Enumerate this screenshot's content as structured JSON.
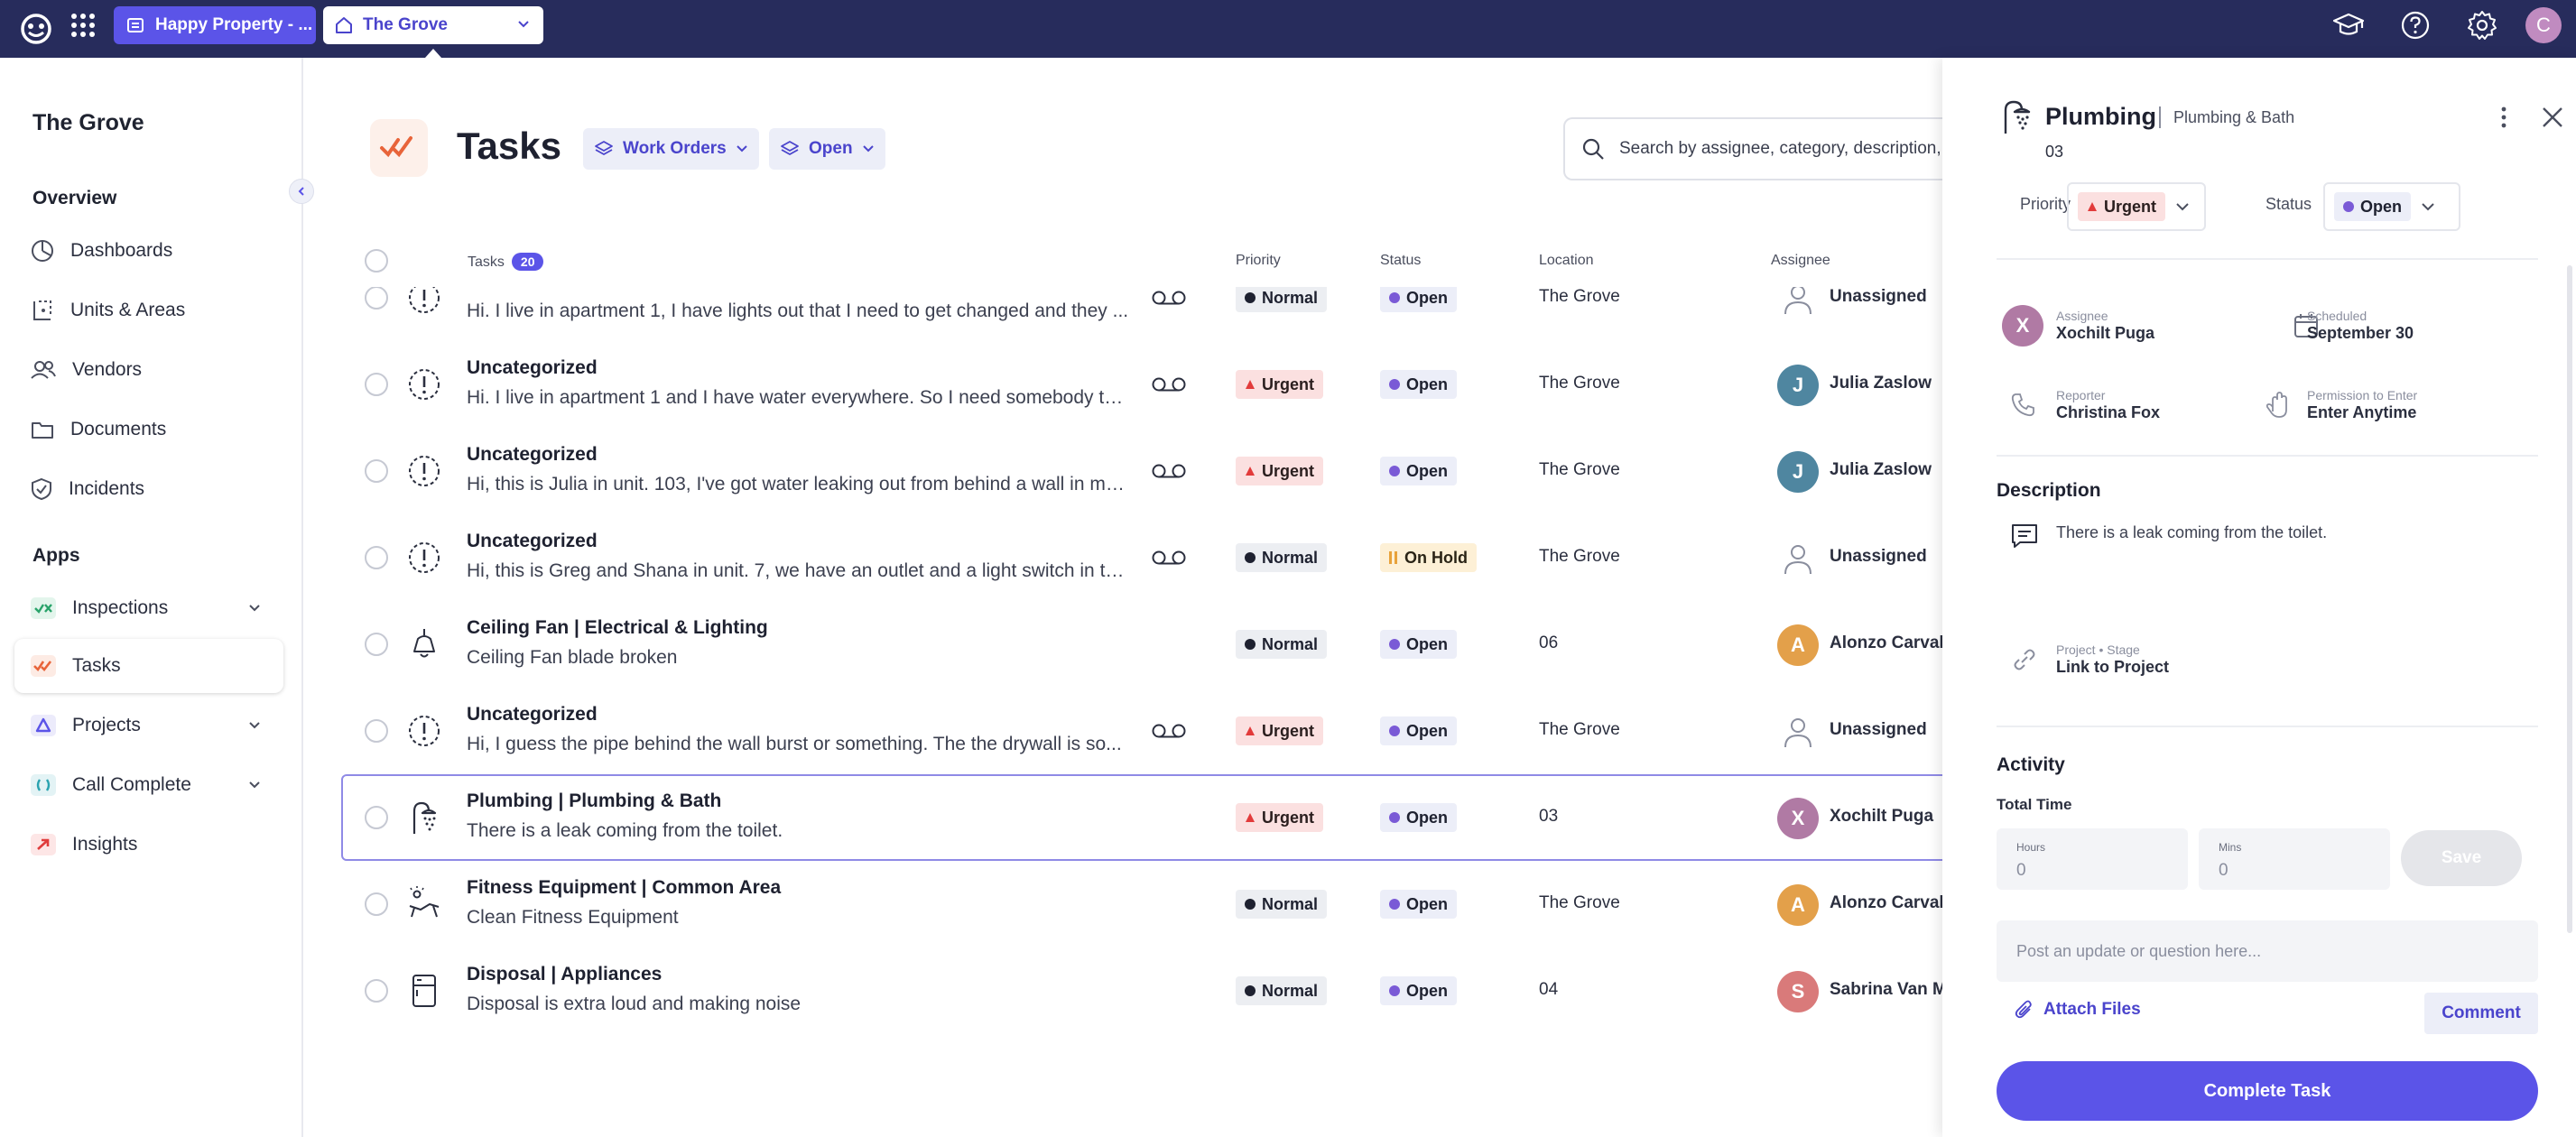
{
  "topbar": {
    "property_label": "Happy Property - ...",
    "location_label": "The Grove",
    "avatar_initial": "C"
  },
  "sidebar": {
    "title": "The Grove",
    "overview_heading": "Overview",
    "overview_items": [
      {
        "label": "Dashboards",
        "icon": "dashboard-icon"
      },
      {
        "label": "Units & Areas",
        "icon": "units-icon"
      },
      {
        "label": "Vendors",
        "icon": "vendors-icon"
      },
      {
        "label": "Documents",
        "icon": "folder-icon"
      },
      {
        "label": "Incidents",
        "icon": "shield-icon"
      }
    ],
    "apps_heading": "Apps",
    "app_items": [
      {
        "label": "Inspections",
        "icon": "inspections-icon",
        "expandable": true
      },
      {
        "label": "Tasks",
        "icon": "tasks-icon",
        "active": true
      },
      {
        "label": "Projects",
        "icon": "projects-icon",
        "expandable": true
      },
      {
        "label": "Call Complete",
        "icon": "call-complete-icon",
        "expandable": true
      },
      {
        "label": "Insights",
        "icon": "insights-icon"
      }
    ]
  },
  "main": {
    "title": "Tasks",
    "filters": [
      {
        "label": "Work Orders"
      },
      {
        "label": "Open"
      }
    ],
    "search_placeholder": "Search by assignee, category, description,",
    "columns": {
      "tasks": "Tasks",
      "tasks_count": "20",
      "priority": "Priority",
      "status": "Status",
      "location": "Location",
      "assignee": "Assignee"
    },
    "rows": [
      {
        "title": "",
        "desc": "Hi. I live in apartment 1, I have lights out that I need to get changed and they ...",
        "icon": "uncategorized-icon",
        "voicemail": true,
        "priority": "Normal",
        "status": "Open",
        "location": "The Grove",
        "assignee": "Unassigned",
        "avatar": "",
        "avatar_color": ""
      },
      {
        "title": "Uncategorized",
        "desc": "Hi. I live in apartment 1 and I have water everywhere. So I need somebody to ...",
        "icon": "uncategorized-icon",
        "voicemail": true,
        "priority": "Urgent",
        "status": "Open",
        "location": "The Grove",
        "assignee": "Julia Zaslow",
        "avatar": "J",
        "avatar_color": "#4f86a0"
      },
      {
        "title": "Uncategorized",
        "desc": "Hi, this is Julia in unit. 103, I've got water leaking out from behind a wall in my ...",
        "icon": "uncategorized-icon",
        "voicemail": true,
        "priority": "Urgent",
        "status": "Open",
        "location": "The Grove",
        "assignee": "Julia Zaslow",
        "avatar": "J",
        "avatar_color": "#4f86a0"
      },
      {
        "title": "Uncategorized",
        "desc": "Hi, this is Greg and Shana in unit. 7, we have an outlet and a light switch in th...",
        "icon": "uncategorized-icon",
        "voicemail": true,
        "priority": "Normal",
        "status": "On Hold",
        "location": "The Grove",
        "assignee": "Unassigned",
        "avatar": "",
        "avatar_color": ""
      },
      {
        "title": "Ceiling Fan | Electrical & Lighting",
        "desc": "Ceiling Fan blade broken",
        "icon": "ceiling-light-icon",
        "voicemail": false,
        "priority": "Normal",
        "status": "Open",
        "location": "06",
        "assignee": "Alonzo Carvall",
        "avatar": "A",
        "avatar_color": "#e3a04a"
      },
      {
        "title": "Uncategorized",
        "desc": "Hi, I guess the pipe behind the wall burst or something. The the drywall is so...",
        "icon": "uncategorized-icon",
        "voicemail": true,
        "priority": "Urgent",
        "status": "Open",
        "location": "The Grove",
        "assignee": "Unassigned",
        "avatar": "",
        "avatar_color": ""
      },
      {
        "title": "Plumbing | Plumbing & Bath",
        "desc": "There is a leak coming from the toilet.",
        "icon": "shower-icon",
        "voicemail": false,
        "priority": "Urgent",
        "status": "Open",
        "location": "03",
        "assignee": "Xochilt Puga",
        "avatar": "X",
        "avatar_color": "#b07aa4",
        "selected": true
      },
      {
        "title": "Fitness Equipment | Common Area",
        "desc": "Clean Fitness Equipment",
        "icon": "lounge-chair-icon",
        "voicemail": false,
        "priority": "Normal",
        "status": "Open",
        "location": "The Grove",
        "assignee": "Alonzo Carvall",
        "avatar": "A",
        "avatar_color": "#e3a04a"
      },
      {
        "title": "Disposal | Appliances",
        "desc": "Disposal is extra loud and making noise",
        "icon": "appliance-icon",
        "voicemail": false,
        "priority": "Normal",
        "status": "Open",
        "location": "04",
        "assignee": "Sabrina Van M",
        "avatar": "S",
        "avatar_color": "#d97a7a"
      }
    ]
  },
  "panel": {
    "title": "Plumbing",
    "subtitle": "Plumbing & Bath",
    "location": "03",
    "priority_label": "Priority",
    "priority_value": "Urgent",
    "status_label": "Status",
    "status_value": "Open",
    "assignee_label": "Assignee",
    "assignee_value": "Xochilt Puga",
    "assignee_initial": "X",
    "scheduled_label": "Scheduled",
    "scheduled_value": "September 30",
    "reporter_label": "Reporter",
    "reporter_value": "Christina Fox",
    "permission_label": "Permission to Enter",
    "permission_value": "Enter Anytime",
    "description_heading": "Description",
    "description_text": "There is a leak coming from the toilet.",
    "project_label": "Project • Stage",
    "project_value": "Link to Project",
    "activity_heading": "Activity",
    "total_time_label": "Total Time",
    "hours_label": "Hours",
    "hours_value": "0",
    "mins_label": "Mins",
    "mins_value": "0",
    "save_label": "Save",
    "post_placeholder": "Post an update or question here...",
    "attach_label": "Attach Files",
    "comment_label": "Comment",
    "complete_label": "Complete Task"
  },
  "colors": {
    "topbar": "#272c5c",
    "accent": "#5b54e8",
    "urgent": "#e23b3b",
    "open_dot": "#7a5ad6",
    "onhold": "#e8a23a"
  }
}
